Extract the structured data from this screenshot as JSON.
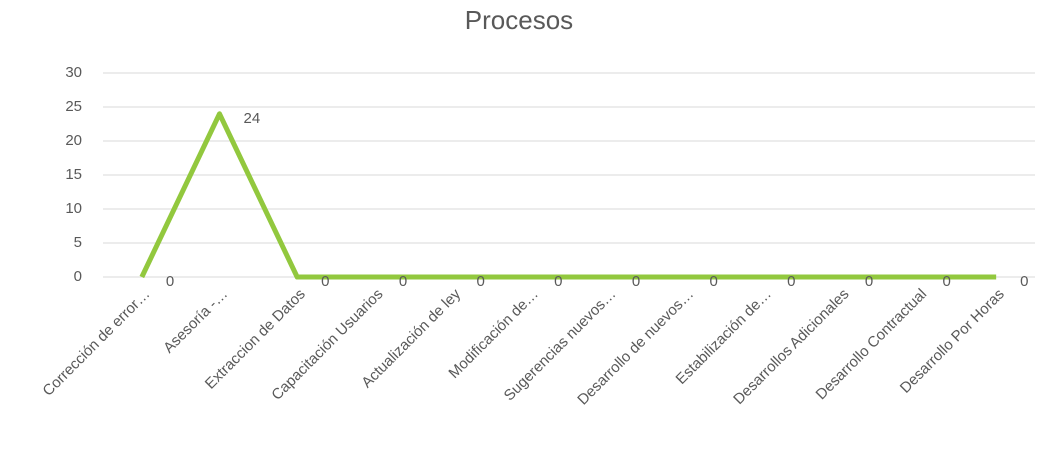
{
  "chart_data": {
    "type": "line",
    "title": "Procesos",
    "categories": [
      "Corrección de error…",
      "Asesoría -…",
      "Extraccion de Datos",
      "Capacitación Usuarios",
      "Actualización de ley",
      "Modificación de…",
      "Sugerencias nuevos…",
      "Desarrollo de nuevos…",
      "Estabilización de…",
      "Desarrollos Adicionales",
      "Desarrollo Contractual",
      "Desarrollo Por Horas"
    ],
    "series": [
      {
        "name": "Procesos",
        "color": "#92c83e",
        "values": [
          0,
          24,
          0,
          0,
          0,
          0,
          0,
          0,
          0,
          0,
          0,
          0
        ]
      }
    ],
    "ylim": [
      0,
      30
    ],
    "yticks": [
      0,
      5,
      10,
      15,
      20,
      25,
      30
    ],
    "grid": true
  }
}
